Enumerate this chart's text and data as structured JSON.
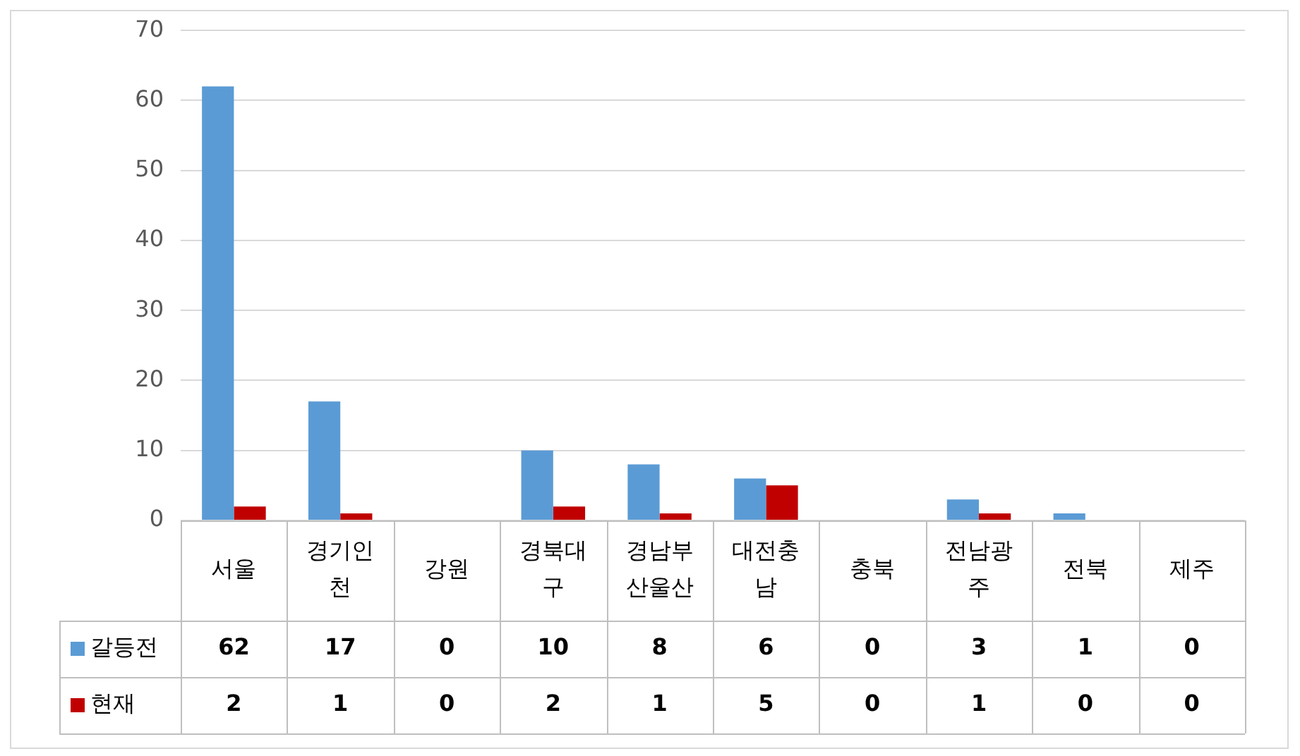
{
  "chart_data": {
    "type": "bar",
    "categories": [
      "서울",
      "경기인천",
      "강원",
      "경북대구",
      "경남부산울산",
      "대전충남",
      "충북",
      "전남광주",
      "전북",
      "제주"
    ],
    "series": [
      {
        "name": "갈등전",
        "color": "#5b9bd5",
        "values": [
          62,
          17,
          0,
          10,
          8,
          6,
          0,
          3,
          1,
          0
        ]
      },
      {
        "name": "현재",
        "color": "#c00000",
        "values": [
          2,
          1,
          0,
          2,
          1,
          5,
          0,
          1,
          0,
          0
        ]
      }
    ],
    "ylim": [
      0,
      70
    ],
    "yticks": [
      0,
      10,
      20,
      30,
      40,
      50,
      60,
      70
    ],
    "grid": "y",
    "legend": "bottom",
    "data_labels": true
  }
}
